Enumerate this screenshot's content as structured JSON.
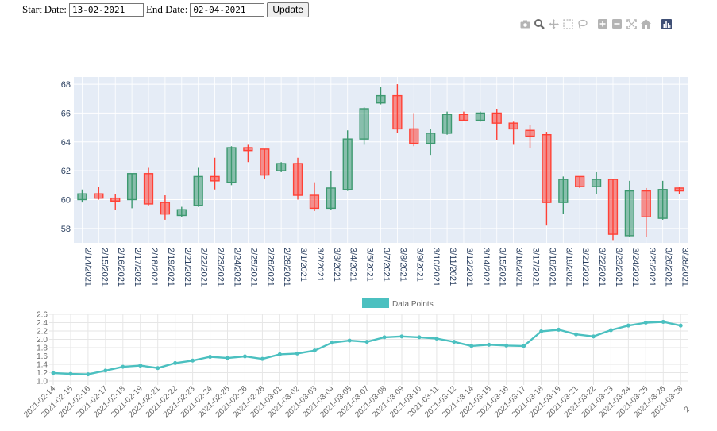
{
  "controls": {
    "start_label": "Start Date:",
    "start_value": "13-02-2021",
    "end_label": "End Date:",
    "end_value": "02-04-2021",
    "update_label": "Update"
  },
  "modebar": {
    "icons": [
      "camera-icon",
      "zoom-icon",
      "pan-icon",
      "box-select-icon",
      "lasso-select-icon",
      "zoom-in-icon",
      "zoom-out-icon",
      "autoscale-icon",
      "home-icon",
      "plotly-logo-icon"
    ]
  },
  "colors": {
    "increasing": "#3d9970",
    "increasing_fill": "rgba(61,153,112,0.55)",
    "decreasing": "#ff4136",
    "decreasing_fill": "rgba(255,65,54,0.55)",
    "plot_bg": "#e5ecf6",
    "line": "#4bc0c0"
  },
  "chart_data": [
    {
      "type": "candlestick",
      "ylim": [
        57,
        68.5
      ],
      "yticks": [
        58,
        60,
        62,
        64,
        66,
        68
      ],
      "categories": [
        "2/14/2021",
        "2/15/2021",
        "2/16/2021",
        "2/17/2021",
        "2/18/2021",
        "2/19/2021",
        "2/21/2021",
        "2/22/2021",
        "2/23/2021",
        "2/24/2021",
        "2/25/2021",
        "2/26/2021",
        "2/28/2021",
        "3/1/2021",
        "3/2/2021",
        "3/3/2021",
        "3/4/2021",
        "3/5/2021",
        "3/7/2021",
        "3/8/2021",
        "3/9/2021",
        "3/10/2021",
        "3/11/2021",
        "3/12/2021",
        "3/14/2021",
        "3/15/2021",
        "3/16/2021",
        "3/17/2021",
        "3/18/2021",
        "3/19/2021",
        "3/21/2021",
        "3/22/2021",
        "3/23/2021",
        "3/24/2021",
        "3/25/2021",
        "3/26/2021",
        "3/28/2021"
      ],
      "open": [
        60.0,
        60.4,
        60.1,
        60.0,
        61.8,
        59.8,
        58.9,
        59.6,
        61.6,
        61.2,
        63.6,
        63.5,
        62.0,
        62.5,
        60.3,
        59.4,
        60.7,
        64.2,
        66.7,
        67.2,
        64.9,
        63.9,
        64.6,
        65.9,
        65.5,
        66.0,
        65.3,
        64.8,
        64.5,
        59.8,
        61.6,
        60.9,
        61.4,
        57.5,
        60.6,
        58.7,
        60.8
      ],
      "high": [
        60.7,
        60.9,
        60.4,
        61.8,
        62.2,
        60.3,
        59.5,
        62.2,
        62.9,
        63.7,
        63.8,
        63.5,
        62.6,
        62.9,
        61.2,
        62.0,
        64.8,
        66.4,
        67.8,
        68.0,
        66.0,
        64.9,
        66.1,
        66.1,
        66.1,
        66.3,
        65.4,
        65.2,
        64.7,
        61.6,
        61.6,
        61.9,
        61.4,
        61.3,
        60.8,
        61.3,
        60.9
      ],
      "low": [
        59.8,
        60.0,
        59.3,
        59.4,
        59.6,
        58.6,
        58.8,
        59.5,
        60.7,
        61.0,
        62.6,
        61.4,
        61.9,
        60.0,
        59.2,
        59.3,
        60.6,
        63.8,
        66.6,
        64.6,
        63.7,
        63.1,
        64.5,
        65.5,
        65.4,
        64.1,
        63.8,
        63.6,
        58.2,
        59.0,
        60.8,
        60.4,
        57.2,
        57.4,
        57.4,
        58.6,
        60.4
      ],
      "close": [
        60.4,
        60.1,
        59.9,
        61.8,
        59.7,
        59.0,
        59.3,
        61.6,
        61.3,
        63.6,
        63.4,
        61.7,
        62.5,
        60.3,
        59.4,
        60.8,
        64.2,
        66.3,
        67.2,
        64.9,
        63.9,
        64.6,
        65.9,
        65.5,
        66.0,
        65.3,
        64.9,
        64.4,
        59.8,
        61.4,
        60.9,
        61.4,
        57.6,
        60.6,
        58.8,
        60.7,
        60.6
      ]
    },
    {
      "type": "line",
      "legend": "Data Points",
      "ylim": [
        1.0,
        2.6
      ],
      "yticks": [
        "2.6",
        "2.4",
        "2.2",
        "2.0",
        "1.8",
        "1.6",
        "1.4",
        "1.2",
        "1.0"
      ],
      "x": [
        "2021-02-14",
        "2021-02-15",
        "2021-02-16",
        "2021-02-17",
        "2021-02-18",
        "2021-02-19",
        "2021-02-21",
        "2021-02-22",
        "2021-02-23",
        "2021-02-24",
        "2021-02-25",
        "2021-02-26",
        "2021-02-28",
        "2021-03-01",
        "2021-03-02",
        "2021-03-03",
        "2021-03-04",
        "2021-03-05",
        "2021-03-07",
        "2021-03-08",
        "2021-03-09",
        "2021-03-10",
        "2021-03-11",
        "2021-03-12",
        "2021-03-14",
        "2021-03-15",
        "2021-03-16",
        "2021-03-17",
        "2021-03-18",
        "2021-03-19",
        "2021-03-21",
        "2021-03-22",
        "2021-03-23",
        "2021-03-24",
        "2021-03-25",
        "2021-03-26",
        "2021-03-28"
      ],
      "y": [
        1.19,
        1.17,
        1.16,
        1.25,
        1.34,
        1.37,
        1.31,
        1.43,
        1.49,
        1.58,
        1.55,
        1.59,
        1.53,
        1.64,
        1.66,
        1.73,
        1.92,
        1.97,
        1.94,
        2.05,
        2.07,
        2.05,
        2.02,
        1.94,
        1.84,
        1.87,
        1.85,
        1.84,
        2.19,
        2.23,
        2.12,
        2.07,
        2.22,
        2.33,
        2.4,
        2.42,
        2.33
      ],
      "x_tick_suffix": "2"
    }
  ]
}
